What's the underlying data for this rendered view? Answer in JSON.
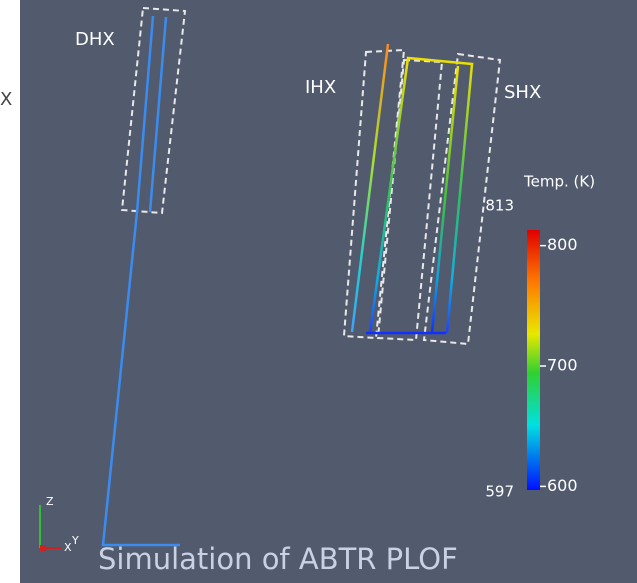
{
  "edge_text": "X",
  "labels": {
    "dhx": "DHX",
    "ihx": "IHX",
    "shx": "SHX"
  },
  "colorbar": {
    "title": "Temp. (K)",
    "range": [
      597,
      813
    ],
    "range_labels": [
      "597",
      "813"
    ],
    "ticks": [
      600,
      700,
      800
    ]
  },
  "axes_triad": {
    "z": "Z",
    "x": "X",
    "y": "Y"
  },
  "caption": "Simulation of ABTR PLOF"
}
